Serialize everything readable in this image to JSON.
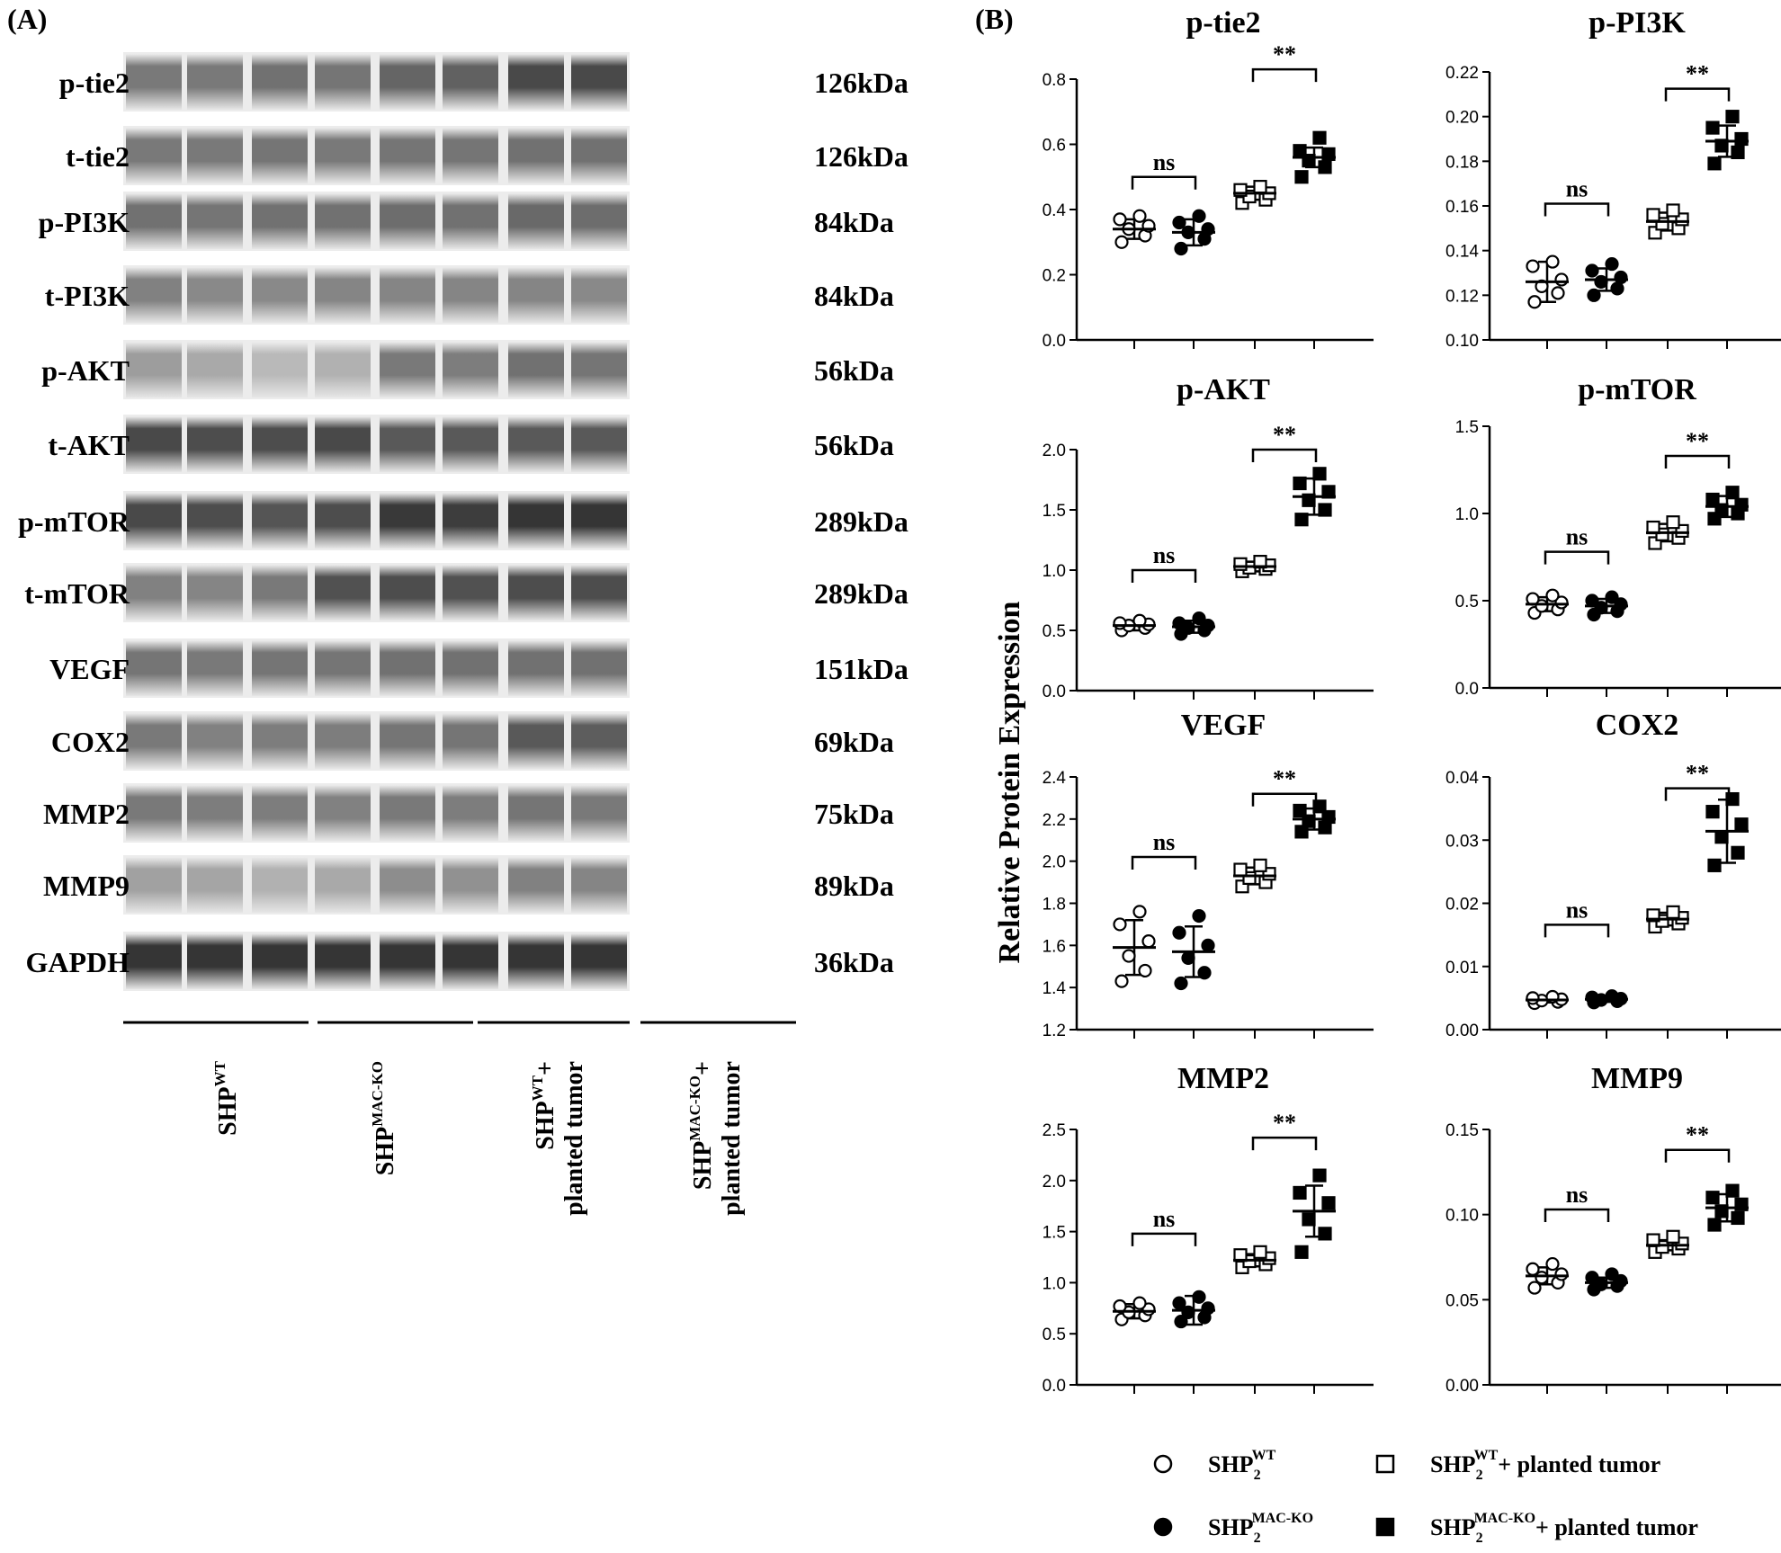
{
  "panel_a": {
    "label": "(A)",
    "blots": [
      {
        "name": "p-tie2",
        "kda": "126kDa",
        "intensities": [
          0.62,
          0.62,
          0.66,
          0.64,
          0.72,
          0.74,
          0.86,
          0.86
        ]
      },
      {
        "name": "t-tie2",
        "kda": "126kDa",
        "intensities": [
          0.62,
          0.62,
          0.64,
          0.62,
          0.64,
          0.64,
          0.66,
          0.66
        ]
      },
      {
        "name": "p-PI3K",
        "kda": "84kDa",
        "intensities": [
          0.66,
          0.64,
          0.66,
          0.66,
          0.68,
          0.66,
          0.7,
          0.68
        ]
      },
      {
        "name": "t-PI3K",
        "kda": "84kDa",
        "intensities": [
          0.58,
          0.54,
          0.54,
          0.56,
          0.56,
          0.56,
          0.56,
          0.54
        ]
      },
      {
        "name": "p-AKT",
        "kda": "56kDa",
        "intensities": [
          0.44,
          0.38,
          0.3,
          0.34,
          0.62,
          0.6,
          0.66,
          0.64
        ]
      },
      {
        "name": "t-AKT",
        "kda": "56kDa",
        "intensities": [
          0.86,
          0.84,
          0.84,
          0.86,
          0.78,
          0.78,
          0.78,
          0.78
        ]
      },
      {
        "name": "p-mTOR",
        "kda": "289kDa",
        "intensities": [
          0.86,
          0.84,
          0.8,
          0.84,
          0.94,
          0.92,
          0.96,
          0.96
        ]
      },
      {
        "name": "t-mTOR",
        "kda": "289kDa",
        "intensities": [
          0.58,
          0.56,
          0.62,
          0.82,
          0.84,
          0.82,
          0.84,
          0.84
        ]
      },
      {
        "name": "VEGF",
        "kda": "151kDa",
        "intensities": [
          0.64,
          0.62,
          0.64,
          0.64,
          0.66,
          0.66,
          0.66,
          0.66
        ]
      },
      {
        "name": "COX2",
        "kda": "69kDa",
        "intensities": [
          0.62,
          0.58,
          0.6,
          0.6,
          0.64,
          0.64,
          0.78,
          0.76
        ]
      },
      {
        "name": "MMP2",
        "kda": "75kDa",
        "intensities": [
          0.62,
          0.6,
          0.6,
          0.58,
          0.62,
          0.6,
          0.64,
          0.62
        ]
      },
      {
        "name": "MMP9",
        "kda": "89kDa",
        "intensities": [
          0.42,
          0.4,
          0.34,
          0.38,
          0.52,
          0.5,
          0.58,
          0.56
        ]
      },
      {
        "name": "GAPDH",
        "kda": "36kDa",
        "intensities": [
          0.96,
          0.96,
          0.96,
          0.96,
          0.96,
          0.96,
          0.96,
          0.96
        ]
      }
    ],
    "groups": [
      {
        "base": "SHP",
        "sup": "WT",
        "line2": ""
      },
      {
        "base": "SHP",
        "sup": "MAC-KO",
        "line2": ""
      },
      {
        "base": "SHP",
        "sup": "WT",
        "suffix": "+",
        "line2": "planted tumor"
      },
      {
        "base": "SHP",
        "sup": "MAC-KO",
        "suffix": "+",
        "line2": "planted tumor"
      }
    ]
  },
  "panel_b": {
    "label": "(B)",
    "ylabel": "Relative Protein Expression",
    "legend": [
      {
        "marker": "open-circle",
        "base": "SHP",
        "sub": "2",
        "sup": "WT",
        "suffix": ""
      },
      {
        "marker": "open-square",
        "base": "SHP",
        "sub": "2",
        "sup": "WT",
        "suffix": "+ planted tumor"
      },
      {
        "marker": "filled-circle",
        "base": "SHP",
        "sub": "2",
        "sup": "MAC-KO",
        "suffix": ""
      },
      {
        "marker": "filled-square",
        "base": "SHP",
        "sub": "2",
        "sup": "MAC-KO",
        "suffix": "+ planted tumor"
      }
    ]
  },
  "chart_data": [
    {
      "type": "scatter",
      "title": "p-tie2",
      "ylim": [
        0.0,
        0.8
      ],
      "ticks": [
        "0.0",
        "0.2",
        "0.4",
        "0.6",
        "0.8"
      ],
      "groups": [
        {
          "name": "SHP2 WT",
          "marker": "open-circle",
          "mean": 0.34,
          "sd": 0.03,
          "points": [
            0.3,
            0.32,
            0.34,
            0.35,
            0.37,
            0.38
          ]
        },
        {
          "name": "SHP2 MAC-KO",
          "marker": "filled-circle",
          "mean": 0.33,
          "sd": 0.04,
          "points": [
            0.28,
            0.31,
            0.33,
            0.34,
            0.36,
            0.38
          ]
        },
        {
          "name": "SHP2 WT + planted tumor",
          "marker": "open-square",
          "mean": 0.45,
          "sd": 0.02,
          "points": [
            0.42,
            0.43,
            0.44,
            0.45,
            0.46,
            0.47
          ]
        },
        {
          "name": "SHP2 MAC-KO + planted tumor",
          "marker": "filled-square",
          "mean": 0.56,
          "sd": 0.03,
          "points": [
            0.5,
            0.53,
            0.55,
            0.57,
            0.58,
            0.62
          ]
        }
      ],
      "comparisons": [
        {
          "pair": [
            0,
            1
          ],
          "label": "ns",
          "y": 0.5
        },
        {
          "pair": [
            2,
            3
          ],
          "label": "**",
          "y": 0.83
        }
      ]
    },
    {
      "type": "scatter",
      "title": "p-PI3K",
      "ylim": [
        0.1,
        0.22
      ],
      "ticks": [
        "0.10",
        "0.12",
        "0.14",
        "0.16",
        "0.18",
        "0.20",
        "0.22"
      ],
      "groups": [
        {
          "name": "SHP2 WT",
          "marker": "open-circle",
          "mean": 0.126,
          "sd": 0.009,
          "points": [
            0.117,
            0.121,
            0.124,
            0.127,
            0.133,
            0.135
          ]
        },
        {
          "name": "SHP2 MAC-KO",
          "marker": "filled-circle",
          "mean": 0.127,
          "sd": 0.005,
          "points": [
            0.12,
            0.123,
            0.126,
            0.128,
            0.131,
            0.134
          ]
        },
        {
          "name": "SHP2 WT + planted tumor",
          "marker": "open-square",
          "mean": 0.153,
          "sd": 0.004,
          "points": [
            0.148,
            0.15,
            0.152,
            0.154,
            0.156,
            0.158
          ]
        },
        {
          "name": "SHP2 MAC-KO + planted tumor",
          "marker": "filled-square",
          "mean": 0.189,
          "sd": 0.007,
          "points": [
            0.179,
            0.184,
            0.187,
            0.19,
            0.195,
            0.2
          ]
        }
      ],
      "comparisons": [
        {
          "pair": [
            0,
            1
          ],
          "label": "ns",
          "y": 0.161
        },
        {
          "pair": [
            2,
            3
          ],
          "label": "**",
          "y": 0.2125
        }
      ]
    },
    {
      "type": "scatter",
      "title": "p-AKT",
      "ylim": [
        0.0,
        2.0
      ],
      "ticks": [
        "0.0",
        "0.5",
        "1.0",
        "1.5",
        "2.0"
      ],
      "groups": [
        {
          "name": "SHP2 WT",
          "marker": "open-circle",
          "mean": 0.54,
          "sd": 0.04,
          "points": [
            0.5,
            0.52,
            0.54,
            0.55,
            0.56,
            0.58
          ]
        },
        {
          "name": "SHP2 MAC-KO",
          "marker": "filled-circle",
          "mean": 0.53,
          "sd": 0.05,
          "points": [
            0.47,
            0.5,
            0.52,
            0.54,
            0.56,
            0.6
          ]
        },
        {
          "name": "SHP2 WT + planted tumor",
          "marker": "open-square",
          "mean": 1.03,
          "sd": 0.04,
          "points": [
            0.99,
            1.01,
            1.02,
            1.04,
            1.05,
            1.07
          ]
        },
        {
          "name": "SHP2 MAC-KO + planted tumor",
          "marker": "filled-square",
          "mean": 1.61,
          "sd": 0.15,
          "points": [
            1.42,
            1.5,
            1.58,
            1.65,
            1.72,
            1.8
          ]
        }
      ],
      "comparisons": [
        {
          "pair": [
            0,
            1
          ],
          "label": "ns",
          "y": 1.0
        },
        {
          "pair": [
            2,
            3
          ],
          "label": "**",
          "y": 2.0
        }
      ]
    },
    {
      "type": "scatter",
      "title": "p-mTOR",
      "ylim": [
        0.0,
        1.5
      ],
      "ticks": [
        "0.0",
        "0.5",
        "1.0",
        "1.5"
      ],
      "groups": [
        {
          "name": "SHP2 WT",
          "marker": "open-circle",
          "mean": 0.48,
          "sd": 0.04,
          "points": [
            0.43,
            0.45,
            0.47,
            0.49,
            0.51,
            0.53
          ]
        },
        {
          "name": "SHP2 MAC-KO",
          "marker": "filled-circle",
          "mean": 0.47,
          "sd": 0.04,
          "points": [
            0.42,
            0.44,
            0.46,
            0.48,
            0.5,
            0.52
          ]
        },
        {
          "name": "SHP2 WT + planted tumor",
          "marker": "open-square",
          "mean": 0.89,
          "sd": 0.05,
          "points": [
            0.83,
            0.86,
            0.88,
            0.9,
            0.92,
            0.95
          ]
        },
        {
          "name": "SHP2 MAC-KO + planted tumor",
          "marker": "filled-square",
          "mean": 1.04,
          "sd": 0.06,
          "points": [
            0.97,
            1.0,
            1.02,
            1.05,
            1.08,
            1.12
          ]
        }
      ],
      "comparisons": [
        {
          "pair": [
            0,
            1
          ],
          "label": "ns",
          "y": 0.78
        },
        {
          "pair": [
            2,
            3
          ],
          "label": "**",
          "y": 1.33
        }
      ]
    },
    {
      "type": "scatter",
      "title": "VEGF",
      "ylim": [
        1.2,
        2.4
      ],
      "ticks": [
        "1.2",
        "1.4",
        "1.6",
        "1.8",
        "2.0",
        "2.2",
        "2.4"
      ],
      "groups": [
        {
          "name": "SHP2 WT",
          "marker": "open-circle",
          "mean": 1.59,
          "sd": 0.13,
          "points": [
            1.43,
            1.48,
            1.55,
            1.62,
            1.7,
            1.76
          ]
        },
        {
          "name": "SHP2 MAC-KO",
          "marker": "filled-circle",
          "mean": 1.57,
          "sd": 0.12,
          "points": [
            1.42,
            1.47,
            1.54,
            1.6,
            1.66,
            1.74
          ]
        },
        {
          "name": "SHP2 WT + planted tumor",
          "marker": "open-square",
          "mean": 1.93,
          "sd": 0.04,
          "points": [
            1.88,
            1.9,
            1.92,
            1.94,
            1.96,
            1.98
          ]
        },
        {
          "name": "SHP2 MAC-KO + planted tumor",
          "marker": "filled-square",
          "mean": 2.2,
          "sd": 0.05,
          "points": [
            2.14,
            2.16,
            2.19,
            2.21,
            2.24,
            2.26
          ]
        }
      ],
      "comparisons": [
        {
          "pair": [
            0,
            1
          ],
          "label": "ns",
          "y": 2.02
        },
        {
          "pair": [
            2,
            3
          ],
          "label": "**",
          "y": 2.32
        }
      ]
    },
    {
      "type": "scatter",
      "title": "COX2",
      "ylim": [
        0.0,
        0.04
      ],
      "ticks": [
        "0.00",
        "0.01",
        "0.02",
        "0.03",
        "0.04"
      ],
      "groups": [
        {
          "name": "SHP2 WT",
          "marker": "open-circle",
          "mean": 0.0047,
          "sd": 0.0004,
          "points": [
            0.0042,
            0.0044,
            0.0046,
            0.0048,
            0.005,
            0.0052
          ]
        },
        {
          "name": "SHP2 MAC-KO",
          "marker": "filled-circle",
          "mean": 0.0048,
          "sd": 0.0004,
          "points": [
            0.0043,
            0.0045,
            0.0047,
            0.0049,
            0.0051,
            0.0053
          ]
        },
        {
          "name": "SHP2 WT + planted tumor",
          "marker": "open-square",
          "mean": 0.0175,
          "sd": 0.001,
          "points": [
            0.0163,
            0.0168,
            0.0172,
            0.0177,
            0.0181,
            0.0186
          ]
        },
        {
          "name": "SHP2 MAC-KO + planted tumor",
          "marker": "filled-square",
          "mean": 0.0314,
          "sd": 0.005,
          "points": [
            0.026,
            0.028,
            0.0305,
            0.0325,
            0.0345,
            0.0365
          ]
        }
      ],
      "comparisons": [
        {
          "pair": [
            0,
            1
          ],
          "label": "ns",
          "y": 0.0166
        },
        {
          "pair": [
            2,
            3
          ],
          "label": "**",
          "y": 0.0382
        }
      ]
    },
    {
      "type": "scatter",
      "title": "MMP2",
      "ylim": [
        0.0,
        2.5
      ],
      "ticks": [
        "0.0",
        "0.5",
        "1.0",
        "1.5",
        "2.0",
        "2.5"
      ],
      "groups": [
        {
          "name": "SHP2 WT",
          "marker": "open-circle",
          "mean": 0.72,
          "sd": 0.07,
          "points": [
            0.64,
            0.68,
            0.71,
            0.74,
            0.77,
            0.8
          ]
        },
        {
          "name": "SHP2 MAC-KO",
          "marker": "filled-circle",
          "mean": 0.73,
          "sd": 0.14,
          "points": [
            0.62,
            0.66,
            0.71,
            0.75,
            0.8,
            0.86
          ]
        },
        {
          "name": "SHP2 WT + planted tumor",
          "marker": "open-square",
          "mean": 1.22,
          "sd": 0.06,
          "points": [
            1.15,
            1.18,
            1.21,
            1.24,
            1.27,
            1.3
          ]
        },
        {
          "name": "SHP2 MAC-KO + planted tumor",
          "marker": "filled-square",
          "mean": 1.7,
          "sd": 0.25,
          "points": [
            1.3,
            1.48,
            1.62,
            1.78,
            1.88,
            2.05
          ]
        }
      ],
      "comparisons": [
        {
          "pair": [
            0,
            1
          ],
          "label": "ns",
          "y": 1.48
        },
        {
          "pair": [
            2,
            3
          ],
          "label": "**",
          "y": 2.42
        }
      ]
    },
    {
      "type": "scatter",
      "title": "MMP9",
      "ylim": [
        0.0,
        0.15
      ],
      "ticks": [
        "0.00",
        "0.05",
        "0.10",
        "0.15"
      ],
      "groups": [
        {
          "name": "SHP2 WT",
          "marker": "open-circle",
          "mean": 0.064,
          "sd": 0.005,
          "points": [
            0.057,
            0.06,
            0.063,
            0.065,
            0.068,
            0.071
          ]
        },
        {
          "name": "SHP2 MAC-KO",
          "marker": "filled-circle",
          "mean": 0.06,
          "sd": 0.003,
          "points": [
            0.056,
            0.058,
            0.059,
            0.061,
            0.063,
            0.065
          ]
        },
        {
          "name": "SHP2 WT + planted tumor",
          "marker": "open-square",
          "mean": 0.082,
          "sd": 0.003,
          "points": [
            0.078,
            0.08,
            0.081,
            0.083,
            0.085,
            0.087
          ]
        },
        {
          "name": "SHP2 MAC-KO + planted tumor",
          "marker": "filled-square",
          "mean": 0.104,
          "sd": 0.008,
          "points": [
            0.094,
            0.098,
            0.102,
            0.106,
            0.11,
            0.114
          ]
        }
      ],
      "comparisons": [
        {
          "pair": [
            0,
            1
          ],
          "label": "ns",
          "y": 0.103
        },
        {
          "pair": [
            2,
            3
          ],
          "label": "**",
          "y": 0.138
        }
      ]
    }
  ]
}
